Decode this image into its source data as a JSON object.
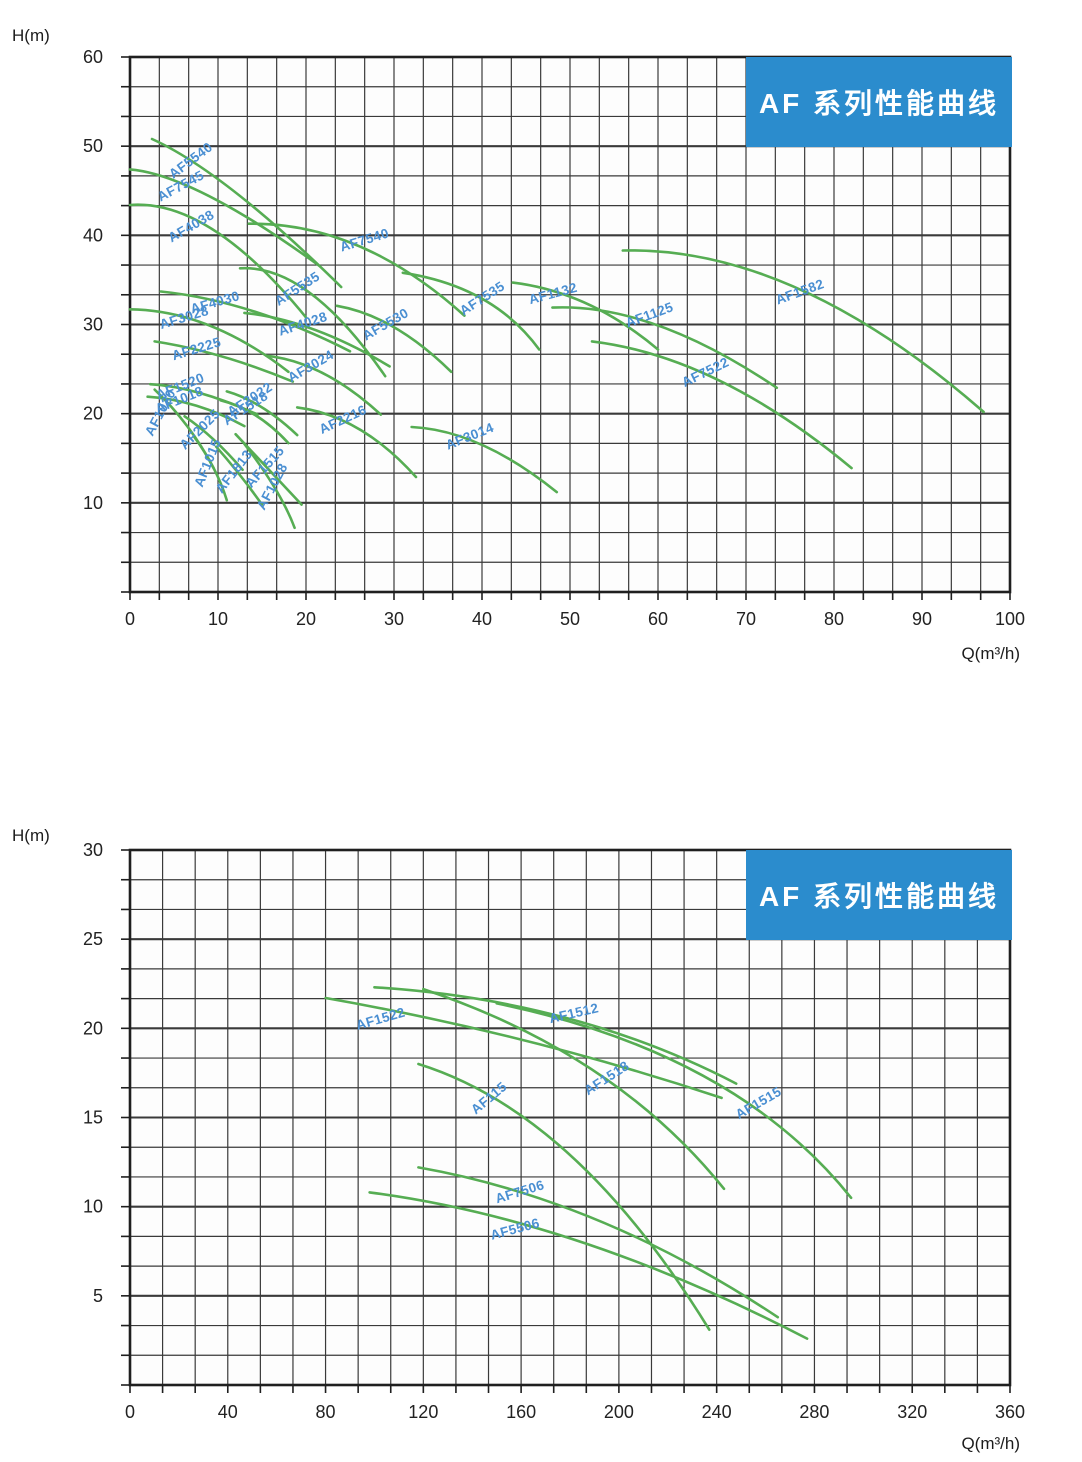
{
  "colors": {
    "curve_green": "#56ad53",
    "label_blue": "#4a8fd2",
    "grid_line": "#3a3a3a",
    "plot_border": "#1f1f1f",
    "tick_text": "#222222",
    "banner_bg": "#2b8ccd",
    "banner_fg": "#ffffff"
  },
  "chart_data": [
    {
      "type": "line",
      "title": "AF 系列性能曲线",
      "xlabel": "Q(m³/h)",
      "ylabel": "H(m)",
      "xlim": [
        0,
        100
      ],
      "ylim": [
        0,
        60
      ],
      "xticks": [
        0,
        10,
        20,
        30,
        40,
        50,
        60,
        70,
        80,
        90,
        100
      ],
      "yticks": [
        60,
        50,
        40,
        30,
        20,
        10
      ],
      "grid": {
        "cols": 30,
        "rows": 18
      },
      "legend_position": "none",
      "series": [
        {
          "name": "AF5540",
          "points": [
            [
              2.5,
              50.8
            ],
            [
              12,
              44.8
            ],
            [
              24,
              34.2
            ]
          ],
          "label_at": [
            7.2,
            48.0
          ],
          "label_rot": -37
        },
        {
          "name": "AF7545",
          "points": [
            [
              0,
              47.4
            ],
            [
              9,
              44.4
            ],
            [
              21.5,
              36.6
            ]
          ],
          "label_at": [
            6.0,
            45.1
          ],
          "label_rot": -28
        },
        {
          "name": "AF4038",
          "points": [
            [
              0,
              43.4
            ],
            [
              9.5,
              40.6
            ],
            [
              20,
              30.8
            ]
          ],
          "label_at": [
            7.2,
            40.6
          ],
          "label_rot": -30
        },
        {
          "name": "AF7540",
          "points": [
            [
              13.5,
              41.3
            ],
            [
              26,
              38.8
            ],
            [
              38,
              31.0
            ]
          ],
          "label_at": [
            26.8,
            39.0
          ],
          "label_rot": -17
        },
        {
          "name": "AF5535",
          "points": [
            [
              12.5,
              36.3
            ],
            [
              20.5,
              33.5
            ],
            [
              29,
              24.2
            ]
          ],
          "label_at": [
            19.3,
            33.6
          ],
          "label_rot": -33
        },
        {
          "name": "AF4030",
          "points": [
            [
              3.5,
              33.7
            ],
            [
              14,
              31.5
            ],
            [
              25,
              27.0
            ]
          ],
          "label_at": [
            9.8,
            32.0
          ],
          "label_rot": -16
        },
        {
          "name": "AF3028",
          "points": [
            [
              0,
              31.7
            ],
            [
              9,
              29.9
            ],
            [
              18,
              24.7
            ]
          ],
          "label_at": [
            6.3,
            30.3
          ],
          "label_rot": -17
        },
        {
          "name": "AF4028",
          "points": [
            [
              13,
              31.3
            ],
            [
              21,
              29.4
            ],
            [
              29.5,
              25.3
            ]
          ],
          "label_at": [
            19.8,
            29.6
          ],
          "label_rot": -18
        },
        {
          "name": "AF5530",
          "points": [
            [
              23.5,
              32.1
            ],
            [
              30,
              29.7
            ],
            [
              36.5,
              24.7
            ]
          ],
          "label_at": [
            29.3,
            29.6
          ],
          "label_rot": -30
        },
        {
          "name": "AF7535",
          "points": [
            [
              31,
              35.8
            ],
            [
              40,
              32.9
            ],
            [
              46.5,
              27.2
            ]
          ],
          "label_at": [
            40.3,
            32.5
          ],
          "label_rot": -33
        },
        {
          "name": "AF1132",
          "points": [
            [
              43.5,
              34.7
            ],
            [
              52,
              32.3
            ],
            [
              60,
              27.2
            ]
          ],
          "label_at": [
            48.2,
            33.0
          ],
          "label_rot": -15
        },
        {
          "name": "AF1125",
          "points": [
            [
              48,
              31.9
            ],
            [
              60,
              29.9
            ],
            [
              73.5,
              22.9
            ]
          ],
          "label_at": [
            59.2,
            30.6
          ],
          "label_rot": -20
        },
        {
          "name": "AF1582",
          "points": [
            [
              56,
              38.3
            ],
            [
              76,
              34.0
            ],
            [
              97,
              20.2
            ]
          ],
          "label_at": [
            76.3,
            33.2
          ],
          "label_rot": -20
        },
        {
          "name": "AF7522",
          "points": [
            [
              52.5,
              28.1
            ],
            [
              67,
              23.7
            ],
            [
              82,
              13.9
            ]
          ],
          "label_at": [
            65.6,
            24.2
          ],
          "label_rot": -26
        },
        {
          "name": "AF2225",
          "points": [
            [
              2.8,
              28.1
            ],
            [
              10.5,
              26.4
            ],
            [
              18.5,
              23.6
            ]
          ],
          "label_at": [
            7.7,
            26.8
          ],
          "label_rot": -17
        },
        {
          "name": "AF3024",
          "points": [
            [
              15.5,
              26.5
            ],
            [
              22,
              24.5
            ],
            [
              28.5,
              19.9
            ]
          ],
          "label_at": [
            20.8,
            24.9
          ],
          "label_rot": -30
        },
        {
          "name": "AF2216",
          "points": [
            [
              19,
              20.7
            ],
            [
              26,
              18.3
            ],
            [
              32.5,
              12.9
            ]
          ],
          "label_at": [
            24.4,
            18.9
          ],
          "label_rot": -25
        },
        {
          "name": "AF3014",
          "points": [
            [
              32,
              18.5
            ],
            [
              40,
              16.5
            ],
            [
              48.5,
              11.2
            ]
          ],
          "label_at": [
            38.8,
            17.0
          ],
          "label_rot": -22
        },
        {
          "name": "AF1520",
          "points": [
            [
              2.3,
              23.3
            ],
            [
              8,
              22.3
            ],
            [
              14.5,
              19.9
            ]
          ],
          "label_at": [
            5.9,
            22.6
          ],
          "label_rot": -22
        },
        {
          "name": "AF1018",
          "points": [
            [
              2.0,
              21.9
            ],
            [
              7.5,
              20.9
            ],
            [
              13,
              18.6
            ]
          ],
          "label_at": [
            5.8,
            21.1
          ],
          "label_rot": -22
        },
        {
          "name": "AF2022",
          "points": [
            [
              11,
              22.5
            ],
            [
              15,
              20.7
            ],
            [
              19,
              17.6
            ]
          ],
          "label_at": [
            13.9,
            21.2
          ],
          "label_rot": -33
        },
        {
          "name": "AF1518",
          "points": [
            [
              10.3,
              21.5
            ],
            [
              14.3,
              19.8
            ],
            [
              18,
              16.7
            ]
          ],
          "label_at": [
            13.4,
            20.2
          ],
          "label_rot": -33
        },
        {
          "name": "AF1020",
          "points": [
            [
              2.8,
              22.7
            ],
            [
              6.5,
              18.6
            ],
            [
              9.5,
              13.9
            ]
          ],
          "label_at": [
            3.9,
            19.9
          ],
          "label_rot": -62
        },
        {
          "name": "AF2025",
          "points": [
            [
              6.2,
              19.7
            ],
            [
              9.5,
              17.1
            ],
            [
              12.8,
              13.7
            ]
          ],
          "label_at": [
            8.3,
            17.9
          ],
          "label_rot": -45
        },
        {
          "name": "AF1015",
          "points": [
            [
              7.3,
              17.4
            ],
            [
              9.5,
              13.9
            ],
            [
              11,
              10.3
            ]
          ],
          "label_at": [
            9.3,
            14.3
          ],
          "label_rot": -68
        },
        {
          "name": "AF1813",
          "points": [
            [
              9.8,
              16.3
            ],
            [
              12.5,
              13.1
            ],
            [
              15,
              9.8
            ]
          ],
          "label_at": [
            12.2,
            13.2
          ],
          "label_rot": -52
        },
        {
          "name": "AF1515",
          "points": [
            [
              12,
              17.7
            ],
            [
              16,
              13.5
            ],
            [
              19.5,
              9.8
            ]
          ],
          "label_at": [
            15.7,
            13.7
          ],
          "label_rot": -48
        },
        {
          "name": "AF1028",
          "points": [
            [
              13,
              16.6
            ],
            [
              16.5,
              11.6
            ],
            [
              18.7,
              7.2
            ]
          ],
          "label_at": [
            16.6,
            11.6
          ],
          "label_rot": -62
        }
      ]
    },
    {
      "type": "line",
      "title": "AF 系列性能曲线",
      "xlabel": "Q(m³/h)",
      "ylabel": "H(m)",
      "xlim": [
        0,
        360
      ],
      "ylim": [
        0,
        30
      ],
      "xticks": [
        0,
        40,
        80,
        120,
        160,
        200,
        240,
        280,
        320,
        360
      ],
      "yticks": [
        30,
        25,
        20,
        15,
        10,
        5
      ],
      "grid": {
        "cols": 27,
        "rows": 18
      },
      "legend_position": "none",
      "series": [
        {
          "name": "AF1512",
          "points": [
            [
              100,
              22.3
            ],
            [
              178,
              20.6
            ],
            [
              248,
              16.9
            ]
          ],
          "label_at": [
            182,
            20.6
          ],
          "label_rot": -13
        },
        {
          "name": "AF1522",
          "points": [
            [
              80,
              21.7
            ],
            [
              162,
              19.3
            ],
            [
              242,
              16.1
            ]
          ],
          "label_at": [
            103,
            20.3
          ],
          "label_rot": -16
        },
        {
          "name": "AF1518",
          "points": [
            [
              120,
              22.2
            ],
            [
              190,
              17.6
            ],
            [
              243,
              11.0
            ]
          ],
          "label_at": [
            196,
            17.0
          ],
          "label_rot": -33
        },
        {
          "name": "AF1515",
          "points": [
            [
              150,
              21.4
            ],
            [
              235,
              17.3
            ],
            [
              295,
              10.5
            ]
          ],
          "label_at": [
            258,
            15.6
          ],
          "label_rot": -30
        },
        {
          "name": "AF115",
          "points": [
            [
              118,
              18.0
            ],
            [
              180,
              12.9
            ],
            [
              237,
              3.1
            ]
          ],
          "label_at": [
            148,
            15.9
          ],
          "label_rot": -40
        },
        {
          "name": "AF7506",
          "points": [
            [
              118,
              12.2
            ],
            [
              192,
              9.2
            ],
            [
              265,
              3.8
            ]
          ],
          "label_at": [
            160,
            10.6
          ],
          "label_rot": -17
        },
        {
          "name": "AF5506",
          "points": [
            [
              98,
              10.8
            ],
            [
              185,
              8.0
            ],
            [
              277,
              2.6
            ]
          ],
          "label_at": [
            158,
            8.5
          ],
          "label_rot": -15
        }
      ]
    }
  ]
}
